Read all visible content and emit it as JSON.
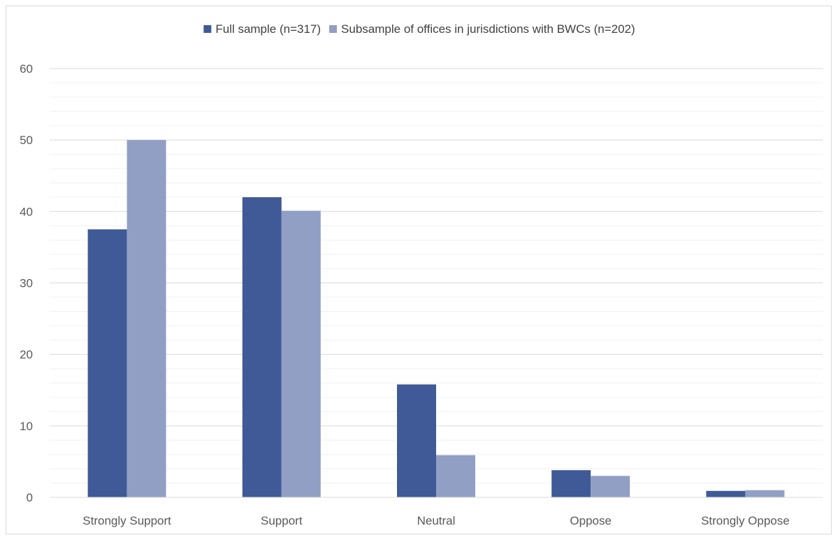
{
  "chart_data": {
    "type": "bar",
    "categories": [
      "Strongly Support",
      "Support",
      "Neutral",
      "Oppose",
      "Strongly Oppose"
    ],
    "series": [
      {
        "name": "Full sample (n=317)",
        "values": [
          37.5,
          42,
          15.8,
          3.8,
          0.9
        ],
        "color": "#3f5a97"
      },
      {
        "name": "Subsample of offices in jurisdictions with BWCs (n=202)",
        "values": [
          50,
          40.1,
          5.9,
          3,
          1
        ],
        "color": "#929fc4"
      }
    ],
    "ylim": [
      0,
      60
    ],
    "yticks": [
      0,
      10,
      20,
      30,
      40,
      50,
      60
    ],
    "minor_grid_step": 2,
    "grid": true,
    "legend_position": "top-center",
    "title": "",
    "xlabel": "",
    "ylabel": ""
  }
}
